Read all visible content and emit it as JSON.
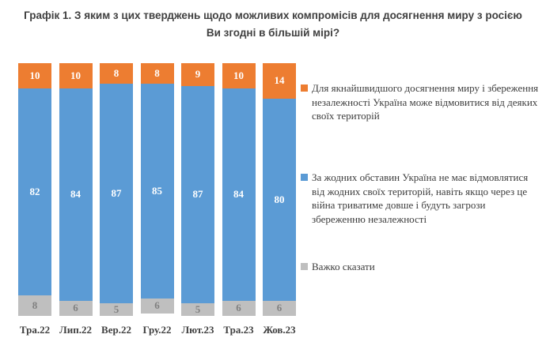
{
  "chart_data": {
    "type": "bar",
    "stacked": true,
    "title": "Графік 1. З яким з цих тверджень щодо можливих компромісів для досягнення миру з росією Ви згодні в більшій мірі?",
    "categories": [
      "Тра.22",
      "Лип.22",
      "Вер.22",
      "Гру.22",
      "Лют.23",
      "Тра.23",
      "Жов.23"
    ],
    "series": [
      {
        "name": "Для якнайшвидшого досягнення миру і збереження незалежності Україна може відмовитися від деяких своїх територій",
        "color": "#ED7D31",
        "label_color": "#FFFFFF",
        "values": [
          10,
          10,
          8,
          8,
          9,
          10,
          14
        ]
      },
      {
        "name": "За жодних обставин Україна не має відмовлятися від жодних своїх територій, навіть якщо через це війна триватиме довше і будуть загрози збереженню незалежності",
        "color": "#5B9BD5",
        "label_color": "#FFFFFF",
        "values": [
          82,
          84,
          87,
          85,
          87,
          84,
          80
        ]
      },
      {
        "name": "Важко сказати",
        "color": "#BFBFBF",
        "label_color": "#808080",
        "values": [
          8,
          6,
          5,
          6,
          5,
          6,
          6
        ]
      }
    ],
    "ylim": [
      0,
      100
    ],
    "grid": false,
    "legend_position": "right"
  },
  "colors": {
    "title_text": "#404040",
    "axis_text": "#404040",
    "legend_text": "#3D3D3D",
    "background": "#FFFFFF"
  }
}
